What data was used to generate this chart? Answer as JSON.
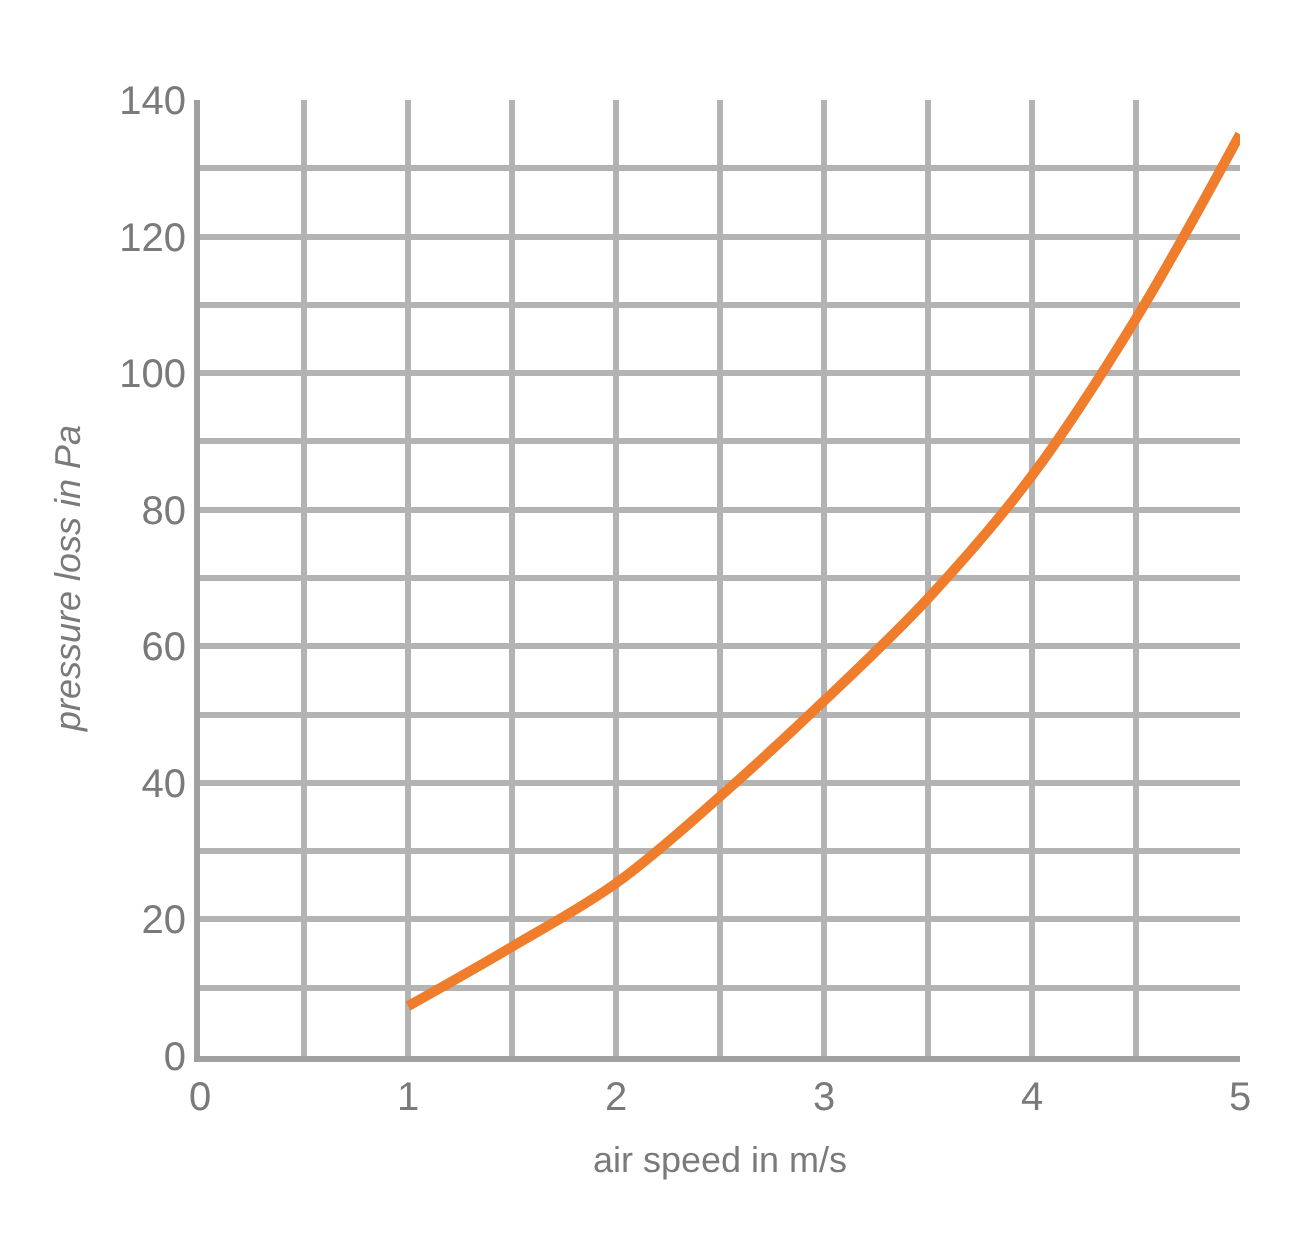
{
  "chart_data": {
    "type": "line",
    "xlabel": "air speed in m/s",
    "ylabel": "pressure loss in Pa",
    "x": [
      1,
      1.5,
      2,
      2.5,
      3,
      3.5,
      4,
      4.5,
      5
    ],
    "series": [
      {
        "color": "#ef7d2b",
        "values": [
          7.3,
          16,
          25.3,
          38,
          52,
          67,
          85,
          108,
          135
        ]
      }
    ],
    "xlim": [
      0,
      5
    ],
    "ylim": [
      0,
      140
    ],
    "xticks": [
      0,
      {
        "value": 0.5,
        "label": null
      },
      1,
      {
        "value": 1.5,
        "label": null
      },
      2,
      {
        "value": 2.5,
        "label": null
      },
      3,
      {
        "value": 3.5,
        "label": null
      },
      4,
      {
        "value": 4.5,
        "label": null
      },
      5
    ],
    "yticks": [
      0,
      {
        "value": 10,
        "label": null
      },
      20,
      {
        "value": 30,
        "label": null
      },
      40,
      {
        "value": 50,
        "label": null
      },
      60,
      {
        "value": 70,
        "label": null
      },
      80,
      {
        "value": 90,
        "label": null
      },
      100,
      {
        "value": 110,
        "label": null
      },
      120,
      {
        "value": 130,
        "label": null
      },
      140
    ],
    "grid": true,
    "legend": false,
    "marker": "none",
    "line_style": "solid"
  }
}
